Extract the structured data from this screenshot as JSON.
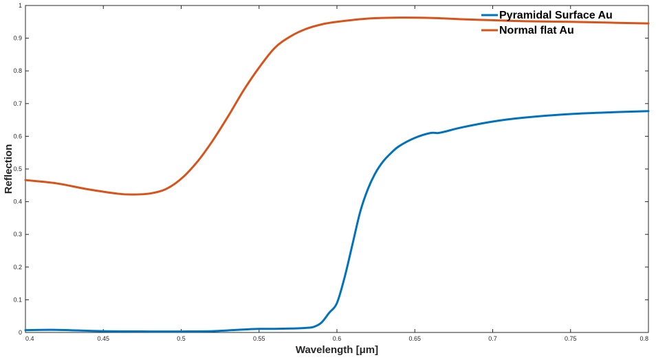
{
  "chart_data": {
    "type": "line",
    "title": "",
    "xlabel": "Wavelength [μm]",
    "ylabel": "Reflection",
    "xlim": [
      0.4,
      0.8
    ],
    "ylim": [
      0,
      1
    ],
    "x_ticks": [
      0.4,
      0.45,
      0.5,
      0.55,
      0.6,
      0.65,
      0.7,
      0.75,
      0.8
    ],
    "x_tick_labels": [
      "0.4",
      "0.45",
      "0.5",
      "0.55",
      "0.6",
      "0.65",
      "0.7",
      "0.75",
      "0.8"
    ],
    "y_ticks": [
      0,
      0.1,
      0.2,
      0.3,
      0.4,
      0.5,
      0.6,
      0.7,
      0.8,
      0.9,
      1
    ],
    "y_tick_labels": [
      "0",
      "0.1",
      "0.2",
      "0.3",
      "0.4",
      "0.5",
      "0.6",
      "0.7",
      "0.8",
      "0.9",
      "1"
    ],
    "grid": false,
    "legend_position": "top-right",
    "series": [
      {
        "name": "Pyramidal Surface Au",
        "color": "#0072bd",
        "x": [
          0.4,
          0.42,
          0.45,
          0.48,
          0.5,
          0.52,
          0.54,
          0.55,
          0.56,
          0.57,
          0.58,
          0.585,
          0.59,
          0.595,
          0.6,
          0.605,
          0.61,
          0.615,
          0.62,
          0.625,
          0.63,
          0.635,
          0.64,
          0.65,
          0.66,
          0.665,
          0.67,
          0.68,
          0.7,
          0.72,
          0.75,
          0.78,
          0.8
        ],
        "y": [
          0.007,
          0.008,
          0.004,
          0.003,
          0.003,
          0.004,
          0.009,
          0.011,
          0.011,
          0.012,
          0.014,
          0.017,
          0.03,
          0.06,
          0.09,
          0.17,
          0.27,
          0.37,
          0.44,
          0.49,
          0.525,
          0.55,
          0.57,
          0.595,
          0.61,
          0.61,
          0.615,
          0.627,
          0.645,
          0.657,
          0.668,
          0.674,
          0.677
        ]
      },
      {
        "name": "Normal flat Au",
        "color": "#d95319",
        "x": [
          0.4,
          0.42,
          0.44,
          0.46,
          0.47,
          0.48,
          0.49,
          0.5,
          0.51,
          0.52,
          0.53,
          0.54,
          0.55,
          0.56,
          0.57,
          0.58,
          0.59,
          0.6,
          0.62,
          0.64,
          0.66,
          0.68,
          0.7,
          0.72,
          0.75,
          0.78,
          0.8
        ],
        "y": [
          0.466,
          0.456,
          0.438,
          0.424,
          0.422,
          0.425,
          0.438,
          0.47,
          0.52,
          0.585,
          0.66,
          0.74,
          0.81,
          0.87,
          0.905,
          0.928,
          0.942,
          0.95,
          0.96,
          0.963,
          0.962,
          0.958,
          0.955,
          0.952,
          0.95,
          0.947,
          0.945
        ]
      }
    ]
  }
}
